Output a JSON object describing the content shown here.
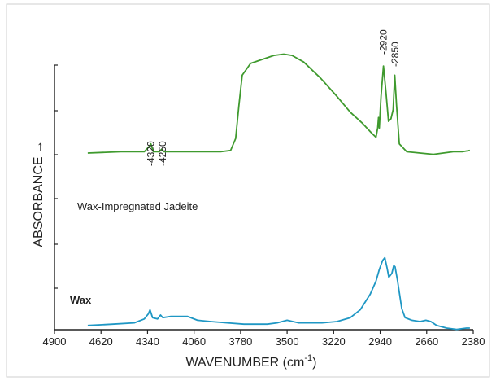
{
  "chart_data": {
    "type": "line",
    "title": "",
    "xlabel": "WAVENUMBER (cm",
    "xlabel_sup": "-1",
    "xlabel_close": ")",
    "ylabel": "ABSORBANCE",
    "ylabel_arrow": "→",
    "xlim": [
      4900,
      2380
    ],
    "x_ticks": [
      "4900",
      "4620",
      "4340",
      "4060",
      "3780",
      "3500",
      "3220",
      "2940",
      "2660",
      "2380"
    ],
    "x_tick_values": [
      4900,
      4620,
      4340,
      4060,
      3780,
      3500,
      3220,
      2940,
      2660,
      2380
    ],
    "annotations": [
      "-4320",
      "-4250",
      "-2920",
      "-2850"
    ],
    "annotation_x": [
      4320,
      4250,
      2920,
      2850
    ],
    "series": [
      {
        "name": "Wax-Impregnated Jadeite",
        "color": "#3f9a2e",
        "points": [
          [
            4700,
            0.29
          ],
          [
            4500,
            0.3
          ],
          [
            4360,
            0.3
          ],
          [
            4330,
            0.34
          ],
          [
            4320,
            0.36
          ],
          [
            4305,
            0.3
          ],
          [
            4270,
            0.3
          ],
          [
            4255,
            0.32
          ],
          [
            4240,
            0.3
          ],
          [
            4100,
            0.3
          ],
          [
            3900,
            0.3
          ],
          [
            3840,
            0.31
          ],
          [
            3810,
            0.4
          ],
          [
            3790,
            0.65
          ],
          [
            3770,
            0.88
          ],
          [
            3720,
            0.97
          ],
          [
            3650,
            1.0
          ],
          [
            3580,
            1.03
          ],
          [
            3520,
            1.04
          ],
          [
            3470,
            1.03
          ],
          [
            3400,
            0.98
          ],
          [
            3300,
            0.86
          ],
          [
            3200,
            0.72
          ],
          [
            3120,
            0.6
          ],
          [
            3050,
            0.52
          ],
          [
            2990,
            0.44
          ],
          [
            2965,
            0.41
          ],
          [
            2955,
            0.48
          ],
          [
            2950,
            0.56
          ],
          [
            2945,
            0.48
          ],
          [
            2935,
            0.72
          ],
          [
            2920,
            0.95
          ],
          [
            2905,
            0.75
          ],
          [
            2890,
            0.53
          ],
          [
            2875,
            0.55
          ],
          [
            2862,
            0.62
          ],
          [
            2852,
            0.88
          ],
          [
            2842,
            0.66
          ],
          [
            2825,
            0.36
          ],
          [
            2780,
            0.3
          ],
          [
            2700,
            0.29
          ],
          [
            2620,
            0.28
          ],
          [
            2560,
            0.29
          ],
          [
            2500,
            0.3
          ],
          [
            2445,
            0.3
          ],
          [
            2400,
            0.31
          ]
        ]
      },
      {
        "name": "Wax",
        "color": "#1f97c4",
        "points": [
          [
            4700,
            0.02
          ],
          [
            4550,
            0.03
          ],
          [
            4420,
            0.04
          ],
          [
            4360,
            0.07
          ],
          [
            4335,
            0.11
          ],
          [
            4325,
            0.14
          ],
          [
            4310,
            0.08
          ],
          [
            4280,
            0.07
          ],
          [
            4262,
            0.1
          ],
          [
            4248,
            0.08
          ],
          [
            4200,
            0.09
          ],
          [
            4100,
            0.09
          ],
          [
            4040,
            0.06
          ],
          [
            3960,
            0.05
          ],
          [
            3860,
            0.04
          ],
          [
            3760,
            0.03
          ],
          [
            3700,
            0.03
          ],
          [
            3620,
            0.03
          ],
          [
            3560,
            0.04
          ],
          [
            3500,
            0.06
          ],
          [
            3430,
            0.04
          ],
          [
            3360,
            0.04
          ],
          [
            3290,
            0.04
          ],
          [
            3200,
            0.05
          ],
          [
            3120,
            0.08
          ],
          [
            3060,
            0.14
          ],
          [
            3000,
            0.26
          ],
          [
            2965,
            0.36
          ],
          [
            2945,
            0.45
          ],
          [
            2925,
            0.52
          ],
          [
            2912,
            0.54
          ],
          [
            2898,
            0.46
          ],
          [
            2888,
            0.39
          ],
          [
            2870,
            0.42
          ],
          [
            2858,
            0.48
          ],
          [
            2850,
            0.47
          ],
          [
            2835,
            0.36
          ],
          [
            2810,
            0.15
          ],
          [
            2790,
            0.08
          ],
          [
            2750,
            0.06
          ],
          [
            2700,
            0.05
          ],
          [
            2665,
            0.06
          ],
          [
            2635,
            0.05
          ],
          [
            2600,
            0.02
          ],
          [
            2540,
            0.0
          ],
          [
            2480,
            -0.01
          ],
          [
            2420,
            0.0
          ],
          [
            2400,
            0.0
          ]
        ]
      }
    ]
  }
}
